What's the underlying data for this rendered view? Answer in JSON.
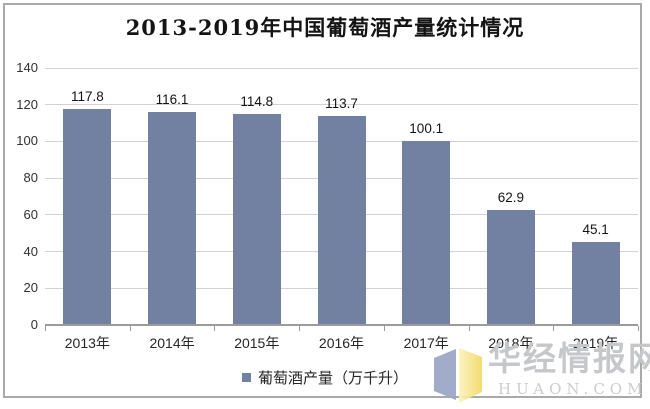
{
  "chart_data": {
    "type": "bar",
    "title": "2013-2019年中国葡萄酒产量统计情况",
    "categories": [
      "2013年",
      "2014年",
      "2015年",
      "2016年",
      "2017年",
      "2018年",
      "2019年"
    ],
    "series": [
      {
        "name": "葡萄酒产量（万千升）",
        "values": [
          117.8,
          116.1,
          114.8,
          113.7,
          100.1,
          62.9,
          45.1
        ]
      }
    ],
    "data_labels": [
      117.8,
      116.1,
      114.8,
      113.7,
      100.1,
      62.9,
      45.1
    ],
    "xlabel": "",
    "ylabel": "",
    "ylim": [
      0,
      140
    ],
    "yticks": [
      0,
      20,
      40,
      60,
      80,
      100,
      120,
      140
    ],
    "grid": true,
    "legend_position": "bottom",
    "bar_color": "#7280a2",
    "gridline_color": "#d2d2d2",
    "axis_color": "#9b9b9b"
  },
  "watermark": {
    "brand": "华经情报网",
    "domain": "HUAON.COM",
    "logo_left_color": "#9aa6c6",
    "logo_right_color": "#f3d966"
  }
}
